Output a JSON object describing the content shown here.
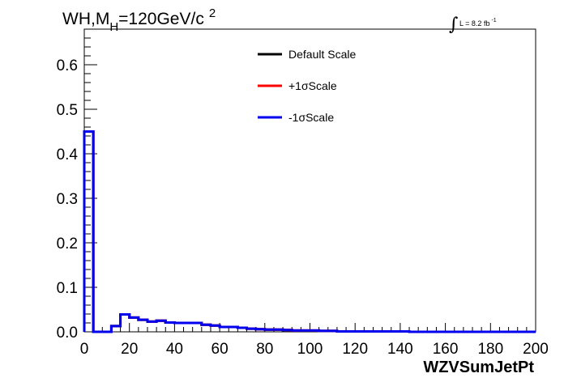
{
  "chart_data": {
    "type": "line",
    "title": {
      "base": "WH,M",
      "subscript": "H",
      "rest": "=120GeV/c",
      "superscript": "2"
    },
    "luminosity": {
      "integral_sign": "∫",
      "text": "L = 8.2 fb",
      "superscript": "-1"
    },
    "xlabel": "WZVSumJetPt",
    "ylabel": "",
    "xlim": [
      0,
      200
    ],
    "ylim": [
      0,
      0.68
    ],
    "x_ticks": [
      "0",
      "20",
      "40",
      "60",
      "80",
      "100",
      "120",
      "140",
      "160",
      "180",
      "200"
    ],
    "y_ticks": [
      "0.0",
      "0.1",
      "0.2",
      "0.3",
      "0.4",
      "0.5",
      "0.6"
    ],
    "grid": false,
    "legend_position": "top-center",
    "bin_edges": [
      0,
      4,
      8,
      12,
      16,
      20,
      24,
      28,
      32,
      36,
      40,
      44,
      48,
      52,
      56,
      60,
      64,
      68,
      72,
      76,
      80,
      84,
      88,
      92,
      96,
      100,
      104,
      108,
      112,
      116,
      120,
      124,
      128,
      132,
      136,
      140,
      144,
      148,
      152,
      156,
      160,
      164,
      168,
      172,
      176,
      180,
      184,
      188,
      192,
      196,
      200
    ],
    "series": [
      {
        "name": "Default Scale",
        "color": "#000000",
        "values": [
          0.45,
          0.0,
          0.0,
          0.013,
          0.039,
          0.032,
          0.027,
          0.023,
          0.025,
          0.021,
          0.02,
          0.02,
          0.02,
          0.016,
          0.014,
          0.011,
          0.011,
          0.009,
          0.007,
          0.006,
          0.005,
          0.005,
          0.004,
          0.003,
          0.003,
          0.003,
          0.002,
          0.002,
          0.001,
          0.001,
          0.001,
          0.001,
          0.001,
          0.001,
          0.001,
          0.001,
          0.0,
          0.0,
          0.0,
          0.0,
          0.0,
          0.0,
          0.0,
          0.0,
          0.0,
          0.0,
          0.0,
          0.0,
          0.0,
          0.0
        ]
      },
      {
        "name": "+1σScale",
        "color": "#ff0000",
        "values": [
          0.45,
          0.0,
          0.0,
          0.013,
          0.039,
          0.032,
          0.027,
          0.023,
          0.025,
          0.021,
          0.02,
          0.02,
          0.02,
          0.016,
          0.014,
          0.011,
          0.011,
          0.009,
          0.007,
          0.006,
          0.005,
          0.005,
          0.004,
          0.003,
          0.003,
          0.003,
          0.002,
          0.002,
          0.001,
          0.001,
          0.001,
          0.001,
          0.001,
          0.001,
          0.001,
          0.001,
          0.0,
          0.0,
          0.0,
          0.0,
          0.0,
          0.0,
          0.0,
          0.0,
          0.0,
          0.0,
          0.0,
          0.0,
          0.0,
          0.0
        ]
      },
      {
        "name": "-1σScale",
        "color": "#0000ee",
        "values": [
          0.45,
          0.0,
          0.0,
          0.013,
          0.039,
          0.032,
          0.027,
          0.023,
          0.025,
          0.021,
          0.02,
          0.02,
          0.02,
          0.016,
          0.014,
          0.011,
          0.011,
          0.009,
          0.007,
          0.006,
          0.005,
          0.005,
          0.004,
          0.003,
          0.003,
          0.003,
          0.002,
          0.002,
          0.001,
          0.001,
          0.001,
          0.001,
          0.001,
          0.001,
          0.001,
          0.001,
          0.0,
          0.0,
          0.0,
          0.0,
          0.0,
          0.0,
          0.0,
          0.0,
          0.0,
          0.0,
          0.0,
          0.0,
          0.0,
          0.0
        ]
      }
    ]
  }
}
